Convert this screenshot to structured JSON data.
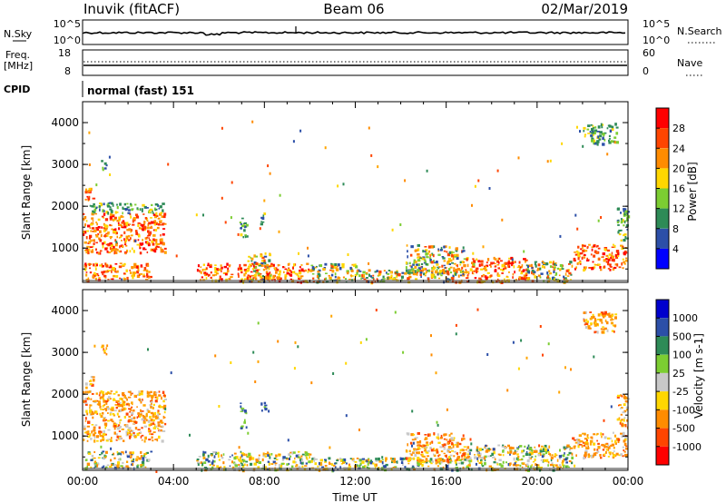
{
  "header": {
    "station": "Inuvik (fitACF)",
    "beam": "Beam 06",
    "date": "02/Mar/2019"
  },
  "panels": {
    "nsky": {
      "label": "N.Sky",
      "top": "10^5",
      "bottom": "10^0",
      "right_label": "N.Search",
      "right_top": "10^5",
      "right_bottom": "10^0"
    },
    "freq": {
      "label_line1": "Freq.",
      "label_line2": "[MHz]",
      "top": "18",
      "bottom": "8",
      "right_label": "Nave",
      "right_top": "60",
      "right_bottom": "0"
    },
    "cpid": {
      "label": "CPID",
      "text": "normal (fast) 151"
    }
  },
  "chart_data": [
    {
      "type": "heatmap",
      "name": "power",
      "ylabel": "Slant Range [km]",
      "xlabel": "",
      "ylim": [
        180,
        4500
      ],
      "yticks": [
        "1000",
        "2000",
        "3000",
        "4000"
      ],
      "colorbar": {
        "label": "Power [dB]",
        "ticks": [
          "4",
          "8",
          "12",
          "16",
          "20",
          "24",
          "28"
        ],
        "colors": [
          "#0000ff",
          "#2c4fa8",
          "#2e8b57",
          "#7ccd32",
          "#ffd700",
          "#ff8c00",
          "#ff4500",
          "#ff0000"
        ]
      },
      "blobs": [
        {
          "t": [
            0.05,
            3.0
          ],
          "r": [
            250,
            650
          ],
          "palette": "hot"
        },
        {
          "t": [
            0.0,
            3.6
          ],
          "r": [
            900,
            1850
          ],
          "palette": "hot"
        },
        {
          "t": [
            0.3,
            3.5
          ],
          "r": [
            1850,
            2100
          ],
          "palette": "cool"
        },
        {
          "t": [
            0.05,
            0.45
          ],
          "r": [
            2150,
            2450
          ],
          "palette": "hot"
        },
        {
          "t": [
            0.8,
            1.05
          ],
          "r": [
            2900,
            3200
          ],
          "palette": "mid"
        },
        {
          "t": [
            5.0,
            6.6
          ],
          "r": [
            250,
            650
          ],
          "palette": "hot"
        },
        {
          "t": [
            6.8,
            10.0
          ],
          "r": [
            200,
            650
          ],
          "palette": "hot"
        },
        {
          "t": [
            6.9,
            7.2
          ],
          "r": [
            1200,
            1800
          ],
          "palette": "cool"
        },
        {
          "t": [
            7.8,
            8.1
          ],
          "r": [
            1600,
            1900
          ],
          "palette": "cool"
        },
        {
          "t": [
            7.2,
            8.2
          ],
          "r": [
            200,
            900
          ],
          "palette": "mid"
        },
        {
          "t": [
            10.0,
            12.0
          ],
          "r": [
            200,
            650
          ],
          "palette": "mid"
        },
        {
          "t": [
            12.0,
            16.8
          ],
          "r": [
            200,
            500
          ],
          "palette": "mid"
        },
        {
          "t": [
            14.2,
            16.8
          ],
          "r": [
            400,
            1100
          ],
          "palette": "mid"
        },
        {
          "t": [
            16.8,
            19.5
          ],
          "r": [
            200,
            800
          ],
          "palette": "hot"
        },
        {
          "t": [
            19.5,
            21.5
          ],
          "r": [
            200,
            700
          ],
          "palette": "mid"
        },
        {
          "t": [
            21.5,
            23.9
          ],
          "r": [
            500,
            1100
          ],
          "palette": "hot"
        },
        {
          "t": [
            22.0,
            23.5
          ],
          "r": [
            3500,
            4000
          ],
          "palette": "cool"
        },
        {
          "t": [
            23.5,
            24.0
          ],
          "r": [
            1200,
            2000
          ],
          "palette": "cool"
        }
      ]
    },
    {
      "type": "heatmap",
      "name": "velocity",
      "ylabel": "Slant Range [km]",
      "xlabel": "Time UT",
      "ylim": [
        180,
        4500
      ],
      "yticks": [
        "1000",
        "2000",
        "3000",
        "4000"
      ],
      "xticks": [
        "00:00",
        "04:00",
        "08:00",
        "12:00",
        "16:00",
        "20:00",
        "00:00"
      ],
      "colorbar": {
        "label": "Velocity [m s-1]",
        "ticks": [
          "1000",
          "500",
          "100",
          "25",
          "-25",
          "-100",
          "-500",
          "-1000"
        ],
        "colors": [
          "#0000cd",
          "#2c4fa8",
          "#2e8b57",
          "#7ccd32",
          "#c8c8c8",
          "#ffd700",
          "#ff8c00",
          "#ff4500",
          "#ff0000"
        ]
      },
      "blobs": [
        {
          "t": [
            0.05,
            3.0
          ],
          "r": [
            250,
            650
          ],
          "palette": "vel_mix"
        },
        {
          "t": [
            0.0,
            3.6
          ],
          "r": [
            900,
            2100
          ],
          "palette": "vel_neg"
        },
        {
          "t": [
            0.05,
            0.45
          ],
          "r": [
            2150,
            2450
          ],
          "palette": "vel_neg"
        },
        {
          "t": [
            0.8,
            1.05
          ],
          "r": [
            2900,
            3200
          ],
          "palette": "vel_neg"
        },
        {
          "t": [
            5.0,
            10.0
          ],
          "r": [
            200,
            650
          ],
          "palette": "vel_mix"
        },
        {
          "t": [
            6.9,
            7.2
          ],
          "r": [
            1200,
            1800
          ],
          "palette": "vel_pos"
        },
        {
          "t": [
            7.8,
            8.1
          ],
          "r": [
            1600,
            1900
          ],
          "palette": "vel_pos"
        },
        {
          "t": [
            10.0,
            16.8
          ],
          "r": [
            200,
            500
          ],
          "palette": "vel_mix"
        },
        {
          "t": [
            14.2,
            16.8
          ],
          "r": [
            400,
            1100
          ],
          "palette": "vel_neg"
        },
        {
          "t": [
            16.8,
            21.5
          ],
          "r": [
            200,
            800
          ],
          "palette": "vel_mix"
        },
        {
          "t": [
            21.5,
            23.9
          ],
          "r": [
            500,
            1100
          ],
          "palette": "vel_neg"
        },
        {
          "t": [
            22.0,
            23.5
          ],
          "r": [
            3500,
            4000
          ],
          "palette": "vel_neg"
        },
        {
          "t": [
            23.5,
            24.0
          ],
          "r": [
            1200,
            2000
          ],
          "palette": "vel_neg"
        }
      ]
    }
  ]
}
